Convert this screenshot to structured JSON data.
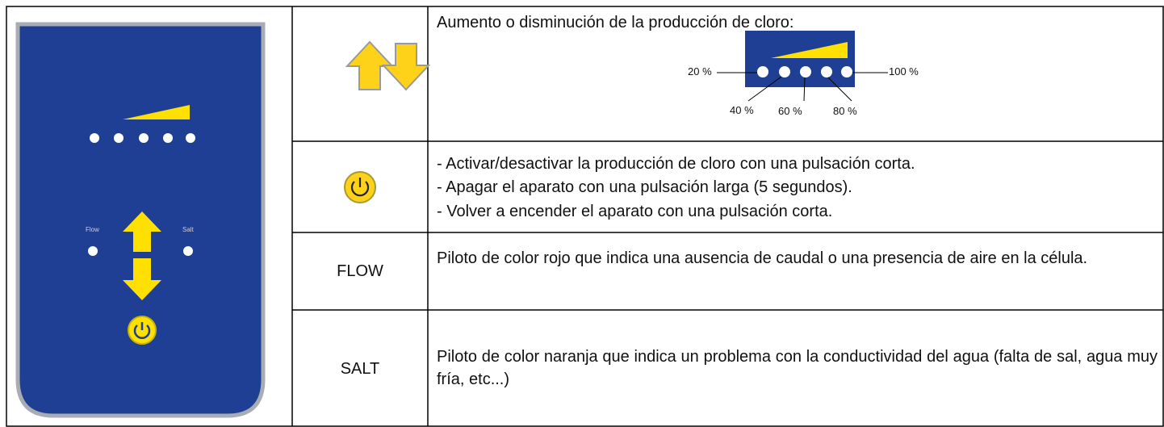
{
  "panel": {
    "flow_label": "Flow",
    "salt_label": "Salt"
  },
  "table": {
    "rows": [
      {
        "description": "Aumento o disminución de la producción de cloro:",
        "levels": [
          "20 %",
          "40 %",
          "60 %",
          "80 %",
          "100 %"
        ]
      },
      {
        "description": [
          "- Activar/desactivar la producción de cloro con una pulsación corta.",
          "- Apagar el aparato con una pulsación larga (5 segundos).",
          "- Volver a encender el aparato con una pulsación corta."
        ]
      },
      {
        "key": "FLOW",
        "description": "Piloto de color rojo que indica una ausencia de caudal o una presencia de aire en la célula."
      },
      {
        "key": "SALT",
        "description": "Piloto de color naranja que indica un problema con la conductividad del agua (falta de sal, agua muy fría, etc...)"
      }
    ]
  }
}
